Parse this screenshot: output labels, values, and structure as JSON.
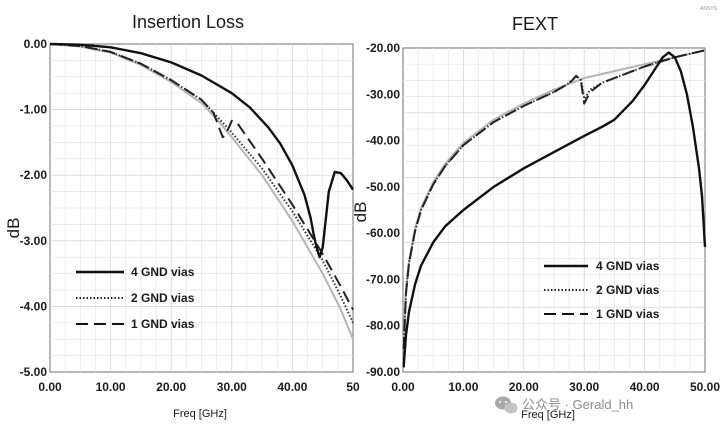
{
  "chart_data": [
    {
      "type": "line",
      "title": "Insertion Loss",
      "xlabel": "Freq [GHz]",
      "ylabel": "dB",
      "xlim": [
        0,
        50
      ],
      "ylim": [
        -5,
        0
      ],
      "xticks": [
        "0.00",
        "10.00",
        "20.00",
        "30.00",
        "40.00",
        "50"
      ],
      "yticks": [
        "0.00",
        "-1.00",
        "-2.00",
        "-3.00",
        "-4.00",
        "-5.00"
      ],
      "grid": true,
      "legend_position": "bottom-left",
      "series": [
        {
          "name": "4 GND vias",
          "style": "solid",
          "color": "#111111",
          "x": [
            0,
            5,
            10,
            15,
            20,
            25,
            30,
            33,
            36,
            38,
            40,
            42,
            43,
            43.5,
            44,
            44.5,
            45,
            46,
            47,
            48,
            49,
            50
          ],
          "y": [
            0,
            -0.01,
            -0.05,
            -0.14,
            -0.28,
            -0.48,
            -0.75,
            -0.97,
            -1.27,
            -1.52,
            -1.85,
            -2.3,
            -2.65,
            -2.9,
            -3.1,
            -3.25,
            -3.1,
            -2.25,
            -1.95,
            -1.97,
            -2.08,
            -2.22
          ]
        },
        {
          "name": "2 GND vias",
          "style": "dotted",
          "color": "#333333",
          "x": [
            0,
            5,
            10,
            15,
            20,
            25,
            28,
            30,
            35,
            40,
            45,
            48,
            50
          ],
          "y": [
            0,
            -0.03,
            -0.12,
            -0.3,
            -0.55,
            -0.85,
            -1.15,
            -1.35,
            -1.9,
            -2.55,
            -3.3,
            -3.85,
            -4.25
          ]
        },
        {
          "name": "1 GND vias",
          "style": "dashed",
          "color": "#222222",
          "x": [
            0,
            5,
            10,
            15,
            20,
            25,
            27,
            28,
            28.5,
            29,
            30,
            31,
            32,
            35,
            40,
            45,
            48,
            50
          ],
          "y": [
            0,
            -0.03,
            -0.12,
            -0.3,
            -0.55,
            -0.85,
            -1.05,
            -1.3,
            -1.42,
            -1.38,
            -1.17,
            -1.22,
            -1.35,
            -1.75,
            -2.45,
            -3.2,
            -3.7,
            -4.05
          ]
        },
        {
          "name": "",
          "style": "solid",
          "color": "#b5b5b5",
          "x": [
            0,
            5,
            10,
            15,
            20,
            25,
            28,
            30,
            35,
            40,
            45,
            48,
            50
          ],
          "y": [
            0,
            -0.04,
            -0.13,
            -0.32,
            -0.58,
            -0.9,
            -1.2,
            -1.42,
            -2.0,
            -2.7,
            -3.5,
            -4.05,
            -4.5
          ]
        }
      ]
    },
    {
      "type": "line",
      "title": "FEXT",
      "xlabel": "Freq [GHz]",
      "ylabel": "dB",
      "xlim": [
        0,
        50
      ],
      "ylim": [
        -90,
        -20
      ],
      "xticks": [
        "0.00",
        "10.00",
        "20.00",
        "30.00",
        "40.00",
        "50.00"
      ],
      "yticks": [
        "-20.00",
        "-30.00",
        "-40.00",
        "-50.00",
        "-60.00",
        "-70.00",
        "-80.00",
        "-90.00"
      ],
      "grid": true,
      "legend_position": "bottom-right",
      "series": [
        {
          "name": "4 GND vias",
          "style": "solid",
          "color": "#111111",
          "x": [
            0.1,
            0.5,
            1,
            2,
            3,
            5,
            7,
            10,
            15,
            20,
            25,
            30,
            33,
            35,
            38,
            40,
            42,
            43,
            44,
            45,
            46,
            47,
            48,
            49,
            49.5,
            50
          ],
          "y": [
            -89,
            -82,
            -77,
            -71,
            -67,
            -62,
            -58.5,
            -55,
            -50,
            -46,
            -42.5,
            -39,
            -37,
            -35.5,
            -31.5,
            -28,
            -24,
            -22,
            -21,
            -22,
            -25,
            -30,
            -37,
            -46,
            -52,
            -63
          ]
        },
        {
          "name": "2 GND vias",
          "style": "dotted",
          "color": "#333333",
          "x": [
            0.1,
            0.5,
            1,
            2,
            3,
            5,
            7,
            10,
            15,
            20,
            25,
            27,
            28,
            28.7,
            29.5,
            30,
            31,
            33,
            35,
            40,
            45,
            50
          ],
          "y": [
            -85,
            -73,
            -66.5,
            -59.5,
            -55,
            -49.5,
            -45.5,
            -41,
            -36,
            -32.5,
            -29.5,
            -28,
            -27,
            -26,
            -27,
            -31,
            -29,
            -27.5,
            -26.5,
            -24,
            -22,
            -20.5
          ]
        },
        {
          "name": "1 GND vias",
          "style": "dashed",
          "color": "#222222",
          "x": [
            0.1,
            0.5,
            1,
            2,
            3,
            5,
            7,
            10,
            15,
            20,
            25,
            27,
            28,
            28.7,
            29.5,
            30,
            31,
            33,
            35,
            40,
            45,
            50
          ],
          "y": [
            -85,
            -73,
            -66.5,
            -59.5,
            -55,
            -49.5,
            -45.5,
            -41,
            -36,
            -32.5,
            -29.5,
            -28,
            -27,
            -26,
            -27.5,
            -32,
            -29.5,
            -27.5,
            -26.5,
            -24,
            -22,
            -20.5
          ]
        },
        {
          "name": "",
          "style": "solid",
          "color": "#b5b5b5",
          "x": [
            0.1,
            0.5,
            1,
            2,
            3,
            5,
            7,
            10,
            15,
            20,
            25,
            28,
            30,
            35,
            40,
            45,
            50
          ],
          "y": [
            -84,
            -72,
            -66,
            -59,
            -54.5,
            -49,
            -45,
            -40.5,
            -35.5,
            -32,
            -29,
            -27.5,
            -26.5,
            -25,
            -23.5,
            -22,
            -20.5
          ]
        }
      ]
    }
  ],
  "watermark": "公众号 · Gerald_hh",
  "corner_mark": "ANSYS"
}
